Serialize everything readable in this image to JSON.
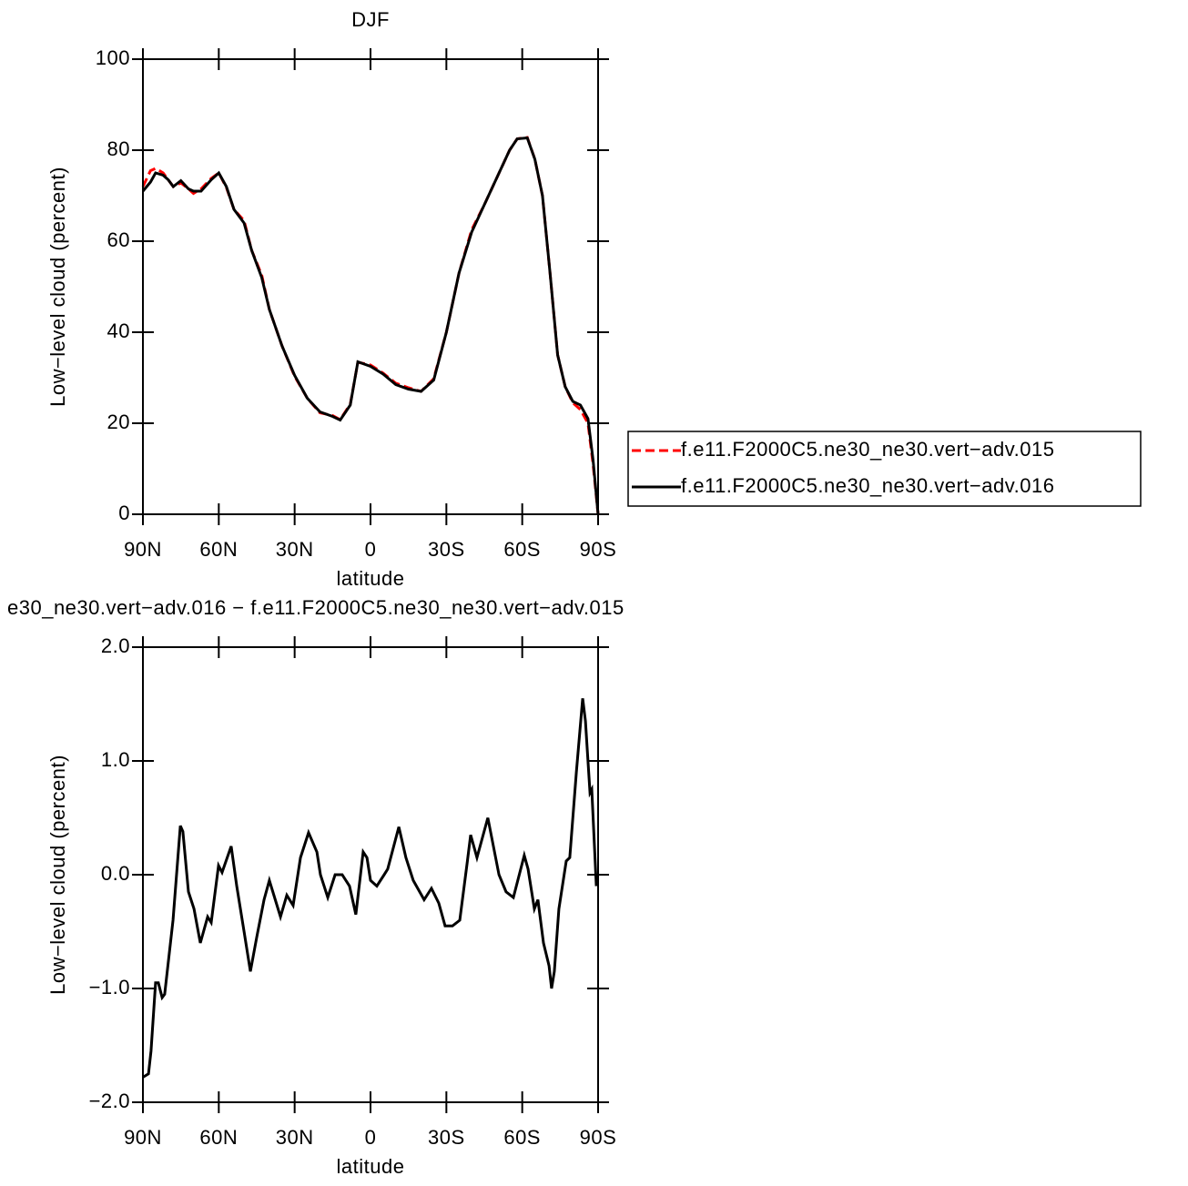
{
  "chart_data": [
    {
      "type": "line",
      "title": "DJF",
      "xlabel": "latitude",
      "ylabel": "Low−level cloud (percent)",
      "xlim": [
        90,
        -90
      ],
      "xticks": [
        {
          "value": 90,
          "label": "90N"
        },
        {
          "value": 60,
          "label": "60N"
        },
        {
          "value": 30,
          "label": "30N"
        },
        0,
        {
          "value": -30,
          "label": "30S"
        },
        {
          "value": -60,
          "label": "60S"
        },
        {
          "value": -90,
          "label": "90S"
        }
      ],
      "ylim": [
        0,
        100
      ],
      "yticks": [
        0,
        20,
        40,
        60,
        80,
        100
      ],
      "legend": "right",
      "x": [
        90,
        87,
        85,
        82,
        80,
        78,
        75,
        72,
        70,
        67,
        63,
        60,
        57,
        54,
        50,
        47,
        43,
        40,
        35,
        30,
        25,
        20,
        15,
        12,
        8,
        5,
        0,
        -5,
        -10,
        -15,
        -20,
        -25,
        -30,
        -35,
        -40,
        -45,
        -50,
        -55,
        -58,
        -62,
        -65,
        -68,
        -71,
        -74,
        -77,
        -80,
        -83,
        -86,
        -88,
        -90
      ],
      "series": [
        {
          "name": "f.e11.F2000C5.ne30_ne30.vert−adv.015",
          "color": "#ff0000",
          "style": "dashed",
          "values": [
            72,
            75.5,
            76,
            75,
            73.5,
            72,
            72.8,
            71.5,
            70.5,
            71.5,
            73.8,
            75,
            71.8,
            67,
            64.5,
            58,
            52.5,
            45,
            37,
            30.3,
            25.5,
            22.3,
            21.7,
            20.8,
            24.2,
            33.4,
            32.8,
            31,
            28.8,
            27.8,
            27,
            29.8,
            40,
            53,
            62.5,
            68,
            74,
            80,
            82.5,
            82.8,
            78,
            70,
            53,
            35,
            28,
            24.5,
            23,
            20,
            11,
            0
          ]
        },
        {
          "name": "f.e11.F2000C5.ne30_ne30.vert−adv.016",
          "color": "#000000",
          "style": "solid",
          "values": [
            71,
            73,
            75,
            74.5,
            73.5,
            72,
            73.3,
            71.5,
            71,
            71,
            73.5,
            75,
            72,
            67,
            64,
            58,
            52,
            45,
            37,
            30.5,
            25.5,
            22.5,
            21.5,
            20.7,
            24,
            33.5,
            32.5,
            30.8,
            28.5,
            27.5,
            27,
            29.5,
            40,
            53,
            62,
            68,
            74,
            80,
            82.5,
            82.7,
            78,
            70,
            53,
            35,
            28,
            24.8,
            24,
            21,
            12,
            0
          ]
        }
      ]
    },
    {
      "type": "line",
      "title": "e30_ne30.vert−adv.016 − f.e11.F2000C5.ne30_ne30.vert−adv.015",
      "xlabel": "latitude",
      "ylabel": "Low−level cloud (percent)",
      "xlim": [
        90,
        -90
      ],
      "xticks": [
        {
          "value": 90,
          "label": "90N"
        },
        {
          "value": 60,
          "label": "60N"
        },
        {
          "value": 30,
          "label": "30N"
        },
        0,
        {
          "value": -30,
          "label": "30S"
        },
        {
          "value": -60,
          "label": "60S"
        },
        {
          "value": -90,
          "label": "90S"
        }
      ],
      "ylim": [
        -2,
        2
      ],
      "yticks": [
        {
          "value": -2,
          "label": "−2.0"
        },
        {
          "value": -1,
          "label": "−1.0"
        },
        {
          "value": 0,
          "label": "0.0"
        },
        {
          "value": 1,
          "label": "1.0"
        },
        {
          "value": 2,
          "label": "2.0"
        }
      ],
      "x": [
        90,
        87.8,
        86.8,
        85,
        83.9,
        82.4,
        81.4,
        78.1,
        75.2,
        74.2,
        72,
        69.8,
        67.3,
        64.4,
        63,
        60.1,
        58.7,
        55.1,
        52.9,
        50,
        47.5,
        45,
        42.1,
        40,
        35.6,
        33.1,
        30.6,
        27.7,
        24.5,
        21.2,
        19.8,
        16.9,
        14,
        11.2,
        8.3,
        5.8,
        2.9,
        1.4,
        0,
        -2.5,
        -5.4,
        -6.8,
        -11.2,
        -14,
        -16.9,
        -21.2,
        -24.1,
        -27,
        -29.5,
        -32.4,
        -35.3,
        -38.2,
        -39.6,
        -42.1,
        -46.4,
        -50.8,
        -53.6,
        -56.5,
        -60.8,
        -62.3,
        -64.8,
        -66.2,
        -68.4,
        -70.6,
        -71.6,
        -72.7,
        -74.5,
        -77.4,
        -78.8,
        -81.4,
        -83.9,
        -85,
        -86.8,
        -87.5,
        -89.3
      ],
      "series": [
        {
          "color": "#000000",
          "style": "solid",
          "values": [
            -1.78,
            -1.75,
            -1.55,
            -0.95,
            -0.95,
            -1.08,
            -1.05,
            -0.4,
            0.43,
            0.38,
            -0.15,
            -0.3,
            -0.6,
            -0.37,
            -0.42,
            0.08,
            0.02,
            0.25,
            -0.1,
            -0.5,
            -0.85,
            -0.55,
            -0.22,
            -0.05,
            -0.37,
            -0.18,
            -0.27,
            0.15,
            0.37,
            0.2,
            0,
            -0.2,
            0,
            0,
            -0.1,
            -0.35,
            0.2,
            0.15,
            -0.05,
            -0.1,
            0,
            0.05,
            0.42,
            0.15,
            -0.05,
            -0.22,
            -0.12,
            -0.25,
            -0.45,
            -0.45,
            -0.4,
            0.1,
            0.35,
            0.15,
            0.5,
            0,
            -0.15,
            -0.2,
            0.17,
            0.05,
            -0.3,
            -0.22,
            -0.6,
            -0.8,
            -1,
            -0.85,
            -0.3,
            0.12,
            0.15,
            0.9,
            1.55,
            1.35,
            0.72,
            0.75,
            -0.1
          ]
        }
      ]
    }
  ]
}
